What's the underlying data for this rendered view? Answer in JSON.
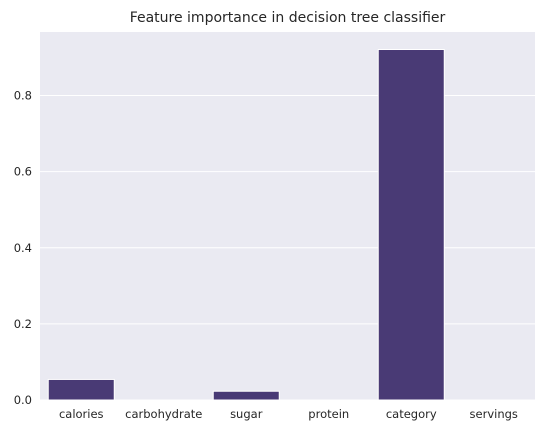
{
  "chart_data": {
    "type": "bar",
    "title": "Feature importance in decision tree classifier",
    "xlabel": "",
    "ylabel": "",
    "categories": [
      "calories",
      "carbohydrate",
      "sugar",
      "protein",
      "category",
      "servings"
    ],
    "values": [
      0.054,
      0.0,
      0.023,
      0.0,
      0.921,
      0.0
    ],
    "ylim": [
      0,
      0.967
    ],
    "yticks": [
      0.0,
      0.2,
      0.4,
      0.6,
      0.8
    ],
    "ytick_labels": [
      "0.0",
      "0.2",
      "0.4",
      "0.6",
      "0.8"
    ],
    "grid": true,
    "bar_color": "#493a75",
    "background_color": "#eaeaf2",
    "grid_color": "#ffffff"
  }
}
